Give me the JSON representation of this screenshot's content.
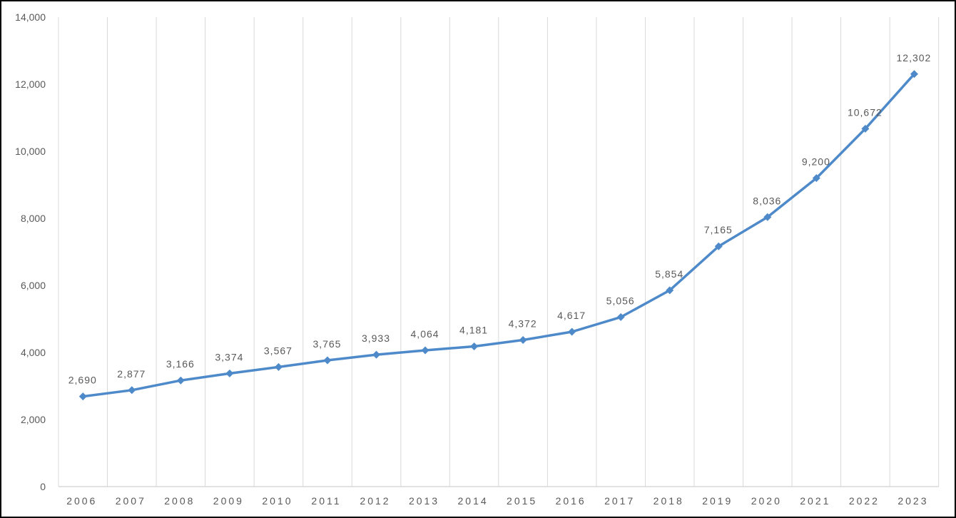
{
  "window": {
    "background_color": "#FFFFFF",
    "border_color": "#000000"
  },
  "chart_data": {
    "type": "line",
    "title": "",
    "legend": "none",
    "grid": "vertical-only",
    "marker_shape": "diamond",
    "x": [
      "2006",
      "2007",
      "2008",
      "2009",
      "2010",
      "2011",
      "2012",
      "2013",
      "2014",
      "2015",
      "2016",
      "2017",
      "2018",
      "2019",
      "2020",
      "2021",
      "2022",
      "2023"
    ],
    "values": [
      2690,
      2877,
      3166,
      3374,
      3567,
      3765,
      3933,
      4064,
      4181,
      4372,
      4617,
      5056,
      5854,
      7165,
      8036,
      9200,
      10672,
      12302
    ],
    "point_labels": [
      "2,690",
      "2,877",
      "3,166",
      "3,374",
      "3,567",
      "3,765",
      "3,933",
      "4,064",
      "4,181",
      "4,372",
      "4,617",
      "5,056",
      "5,854",
      "7,165",
      "8,036",
      "9,200",
      "10,672",
      "12,302"
    ],
    "y_axis": {
      "range": [
        0,
        14000
      ],
      "tick_step": 2000,
      "tick_values": [
        0,
        2000,
        4000,
        6000,
        8000,
        10000,
        12000,
        14000
      ],
      "tick_labels": [
        "0",
        "2,000",
        "4,000",
        "6,000",
        "8,000",
        "10,000",
        "12,000",
        "14,000"
      ]
    },
    "colors": {
      "line": "#4E8AC9",
      "marker": "#4E8AC9",
      "text": "#595959",
      "gridline": "#D9D9D9",
      "axis_line": "#D9D9D9"
    }
  }
}
